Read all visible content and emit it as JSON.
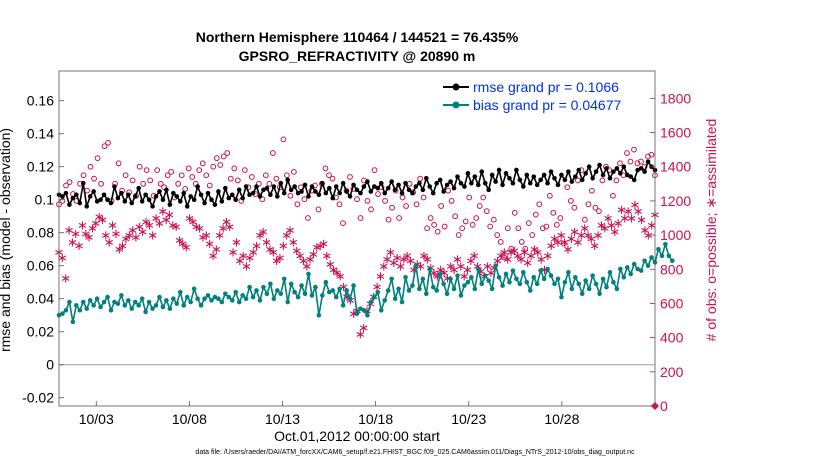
{
  "chart_data": {
    "type": "line",
    "title": "Northern Hemisphere 110464 / 144521 = 76.435%",
    "subtitle": "GPSRO_REFRACTIVITY @ 20890 m",
    "xlabel": "Oct.01,2012 00:00:00 start",
    "ylabel_left": "rmse and bias (model - observation)",
    "ylabel_right": "# of obs: o=possible; ∗=assimilated",
    "x_tick_labels": [
      "10/03",
      "10/08",
      "10/13",
      "10/18",
      "10/23",
      "10/28"
    ],
    "y_left_ticks": [
      "-0.02",
      "0",
      "0.02",
      "0.04",
      "0.06",
      "0.08",
      "0.1",
      "0.12",
      "0.14",
      "0.16"
    ],
    "y_right_ticks": [
      "0",
      "200",
      "400",
      "600",
      "800",
      "1000",
      "1200",
      "1400",
      "1600",
      "1800"
    ],
    "xlim_days": [
      1,
      33
    ],
    "ylim_left": [
      -0.025,
      0.178
    ],
    "ylim_right": [
      0,
      1960
    ],
    "legend_position": "top-right",
    "grid": false,
    "colors": {
      "rmse": "#000000",
      "bias": "#00807f",
      "obs": "#cc1155",
      "legend_text": "#0033dd",
      "zero_line": "#c8a0ae"
    },
    "series": [
      {
        "name": "rmse grand pr = 0.1066",
        "key": "rmse",
        "values": [
          0.103,
          0.102,
          0.104,
          0.097,
          0.101,
          0.103,
          0.098,
          0.11,
          0.096,
          0.102,
          0.105,
          0.099,
          0.1,
          0.103,
          0.1,
          0.098,
          0.108,
          0.101,
          0.104,
          0.099,
          0.103,
          0.098,
          0.102,
          0.107,
          0.099,
          0.103,
          0.1,
          0.096,
          0.102,
          0.105,
          0.1,
          0.106,
          0.097,
          0.104,
          0.102,
          0.099,
          0.104,
          0.096,
          0.102,
          0.1,
          0.108,
          0.103,
          0.098,
          0.104,
          0.1,
          0.097,
          0.105,
          0.099,
          0.107,
          0.101,
          0.103,
          0.1,
          0.106,
          0.101,
          0.108,
          0.103,
          0.104,
          0.108,
          0.102,
          0.106,
          0.107,
          0.103,
          0.108,
          0.102,
          0.11,
          0.104,
          0.112,
          0.106,
          0.108,
          0.104,
          0.105,
          0.109,
          0.102,
          0.108,
          0.105,
          0.103,
          0.11,
          0.104,
          0.107,
          0.101,
          0.108,
          0.104,
          0.11,
          0.105,
          0.102,
          0.109,
          0.106,
          0.104,
          0.108,
          0.111,
          0.105,
          0.108,
          0.107,
          0.11,
          0.104,
          0.107,
          0.111,
          0.106,
          0.109,
          0.104,
          0.11,
          0.106,
          0.104,
          0.108,
          0.11,
          0.106,
          0.113,
          0.108,
          0.104,
          0.11,
          0.112,
          0.105,
          0.109,
          0.111,
          0.107,
          0.114,
          0.11,
          0.108,
          0.116,
          0.11,
          0.114,
          0.109,
          0.117,
          0.11,
          0.106,
          0.115,
          0.111,
          0.118,
          0.109,
          0.116,
          0.113,
          0.11,
          0.118,
          0.112,
          0.108,
          0.115,
          0.11,
          0.114,
          0.109,
          0.112,
          0.115,
          0.11,
          0.117,
          0.113,
          0.109,
          0.115,
          0.112,
          0.117,
          0.111,
          0.114,
          0.118,
          0.112,
          0.116,
          0.12,
          0.113,
          0.117,
          0.121,
          0.115,
          0.119,
          0.113,
          0.117,
          0.119,
          0.116,
          0.12,
          0.115,
          0.114,
          0.112,
          0.118,
          0.119,
          0.117,
          0.123,
          0.12,
          0.118
        ]
      },
      {
        "name": "bias grand pr = 0.04677",
        "key": "bias",
        "values": [
          0.03,
          0.031,
          0.033,
          0.038,
          0.026,
          0.036,
          0.033,
          0.038,
          0.034,
          0.039,
          0.036,
          0.04,
          0.035,
          0.038,
          0.041,
          0.033,
          0.038,
          0.037,
          0.042,
          0.036,
          0.039,
          0.034,
          0.038,
          0.036,
          0.04,
          0.032,
          0.038,
          0.034,
          0.036,
          0.041,
          0.035,
          0.039,
          0.034,
          0.04,
          0.037,
          0.044,
          0.036,
          0.041,
          0.038,
          0.046,
          0.04,
          0.036,
          0.04,
          0.042,
          0.039,
          0.041,
          0.04,
          0.038,
          0.043,
          0.041,
          0.039,
          0.044,
          0.038,
          0.042,
          0.04,
          0.047,
          0.041,
          0.045,
          0.039,
          0.047,
          0.043,
          0.049,
          0.04,
          0.045,
          0.043,
          0.052,
          0.038,
          0.049,
          0.044,
          0.041,
          0.048,
          0.043,
          0.055,
          0.042,
          0.047,
          0.03,
          0.042,
          0.05,
          0.044,
          0.045,
          0.041,
          0.046,
          0.036,
          0.045,
          0.04,
          0.048,
          0.031,
          0.034,
          0.033,
          0.03,
          0.038,
          0.041,
          0.044,
          0.033,
          0.039,
          0.045,
          0.052,
          0.04,
          0.046,
          0.038,
          0.053,
          0.045,
          0.048,
          0.06,
          0.046,
          0.052,
          0.043,
          0.058,
          0.047,
          0.045,
          0.055,
          0.049,
          0.043,
          0.052,
          0.046,
          0.054,
          0.042,
          0.048,
          0.05,
          0.053,
          0.046,
          0.058,
          0.049,
          0.054,
          0.051,
          0.046,
          0.06,
          0.053,
          0.048,
          0.055,
          0.05,
          0.057,
          0.052,
          0.049,
          0.056,
          0.05,
          0.045,
          0.053,
          0.049,
          0.057,
          0.052,
          0.058,
          0.054,
          0.049,
          0.052,
          0.041,
          0.05,
          0.056,
          0.046,
          0.053,
          0.049,
          0.043,
          0.051,
          0.046,
          0.054,
          0.049,
          0.043,
          0.052,
          0.047,
          0.056,
          0.05,
          0.046,
          0.058,
          0.053,
          0.059,
          0.055,
          0.061,
          0.058,
          0.057,
          0.063,
          0.06,
          0.065,
          0.062,
          0.07,
          0.066,
          0.073,
          0.066,
          0.063
        ]
      }
    ],
    "obs_possible": [
      1180,
      1200,
      1290,
      1310,
      1240,
      1200,
      1300,
      1350,
      1260,
      1400,
      1330,
      1450,
      1300,
      1520,
      1540,
      1200,
      1300,
      1420,
      1260,
      1350,
      1250,
      1320,
      1230,
      1400,
      1300,
      1380,
      1320,
      1230,
      1380,
      1300,
      1280,
      1350,
      1370,
      1220,
      1300,
      1350,
      1270,
      1390,
      1340,
      1300,
      1380,
      1420,
      1350,
      1290,
      1400,
      1450,
      1410,
      1460,
      1480,
      1330,
      1390,
      1320,
      1200,
      1380,
      1280,
      1340,
      1240,
      1300,
      1210,
      1350,
      1300,
      1480,
      1330,
      1280,
      1560,
      1350,
      1230,
      1370,
      1180,
      1280,
      1210,
      1100,
      1260,
      1290,
      1150,
      1300,
      1390,
      1350,
      1330,
      1220,
      1180,
      1070,
      1260,
      1340,
      1270,
      1210,
      1100,
      1320,
      1200,
      1150,
      1380,
      1240,
      1280,
      1200,
      1090,
      1160,
      1260,
      1100,
      1220,
      1170,
      1300,
      1250,
      1180,
      1330,
      1220,
      1040,
      1100,
      1060,
      1020,
      1170,
      1050,
      1260,
      1200,
      1110,
      1000,
      1040,
      1080,
      1220,
      1060,
      1100,
      1170,
      1220,
      1140,
      1050,
      1090,
      1000,
      960,
      870,
      1040,
      920,
      1130,
      1040,
      960,
      920,
      1070,
      1000,
      1120,
      1180,
      1040,
      1050,
      1230,
      1130,
      1060,
      1100,
      950,
      1280,
      1200,
      1160,
      1320,
      1380,
      1090,
      1180,
      1260,
      1160,
      1140,
      1320,
      1400,
      1380,
      1230,
      1320,
      1420,
      1350,
      1480,
      1430,
      1500,
      1420,
      1430,
      1400,
      1460,
      1470,
      1350
    ],
    "obs_assimilated": [
      900,
      870,
      750,
      1030,
      960,
      1010,
      940,
      1060,
      1010,
      990,
      1040,
      1070,
      1110,
      1090,
      1000,
      960,
      1060,
      1010,
      920,
      940,
      980,
      1000,
      1030,
      990,
      1050,
      1020,
      1080,
      1060,
      1000,
      1100,
      1070,
      1140,
      1090,
      1120,
      1060,
      1050,
      970,
      950,
      930,
      1100,
      1080,
      1050,
      1040,
      990,
      1000,
      950,
      880,
      920,
      1000,
      1040,
      1080,
      1050,
      900,
      960,
      850,
      880,
      820,
      870,
      900,
      940,
      1000,
      1020,
      960,
      920,
      900,
      850,
      870,
      940,
      1000,
      1030,
      960,
      910,
      880,
      850,
      820,
      860,
      890,
      930,
      940,
      950,
      880,
      830,
      800,
      780,
      760,
      700,
      640,
      620,
      540,
      560,
      420,
      460,
      560,
      600,
      640,
      700,
      760,
      820,
      860,
      900,
      840,
      870,
      820,
      860,
      880,
      850,
      800,
      830,
      820,
      880,
      860,
      810,
      780,
      760,
      800,
      780,
      750,
      820,
      800,
      860,
      820,
      760,
      800,
      850,
      880,
      820,
      790,
      760,
      820,
      780,
      810,
      850,
      880,
      900,
      860,
      900,
      910,
      880,
      860,
      900,
      840,
      880,
      920,
      900,
      860,
      800,
      880,
      940,
      980,
      960,
      1000,
      960,
      920,
      980,
      1020,
      960,
      1000,
      1040,
      1000,
      980,
      940,
      1000,
      1060,
      1040,
      1100,
      1060,
      1020,
      1070,
      1150,
      1100,
      1140,
      1100,
      1180,
      1140,
      1090,
      1030,
      1000,
      1060,
      1120
    ]
  },
  "footer_text": "data file: /Users/raeder/DAI/ATM_forcXX/CAM6_setup/f.e21.FHIST_BGC.f09_025.CAM6assim.011/Diags_NTrS_2012-10/obs_diag_output.nc"
}
